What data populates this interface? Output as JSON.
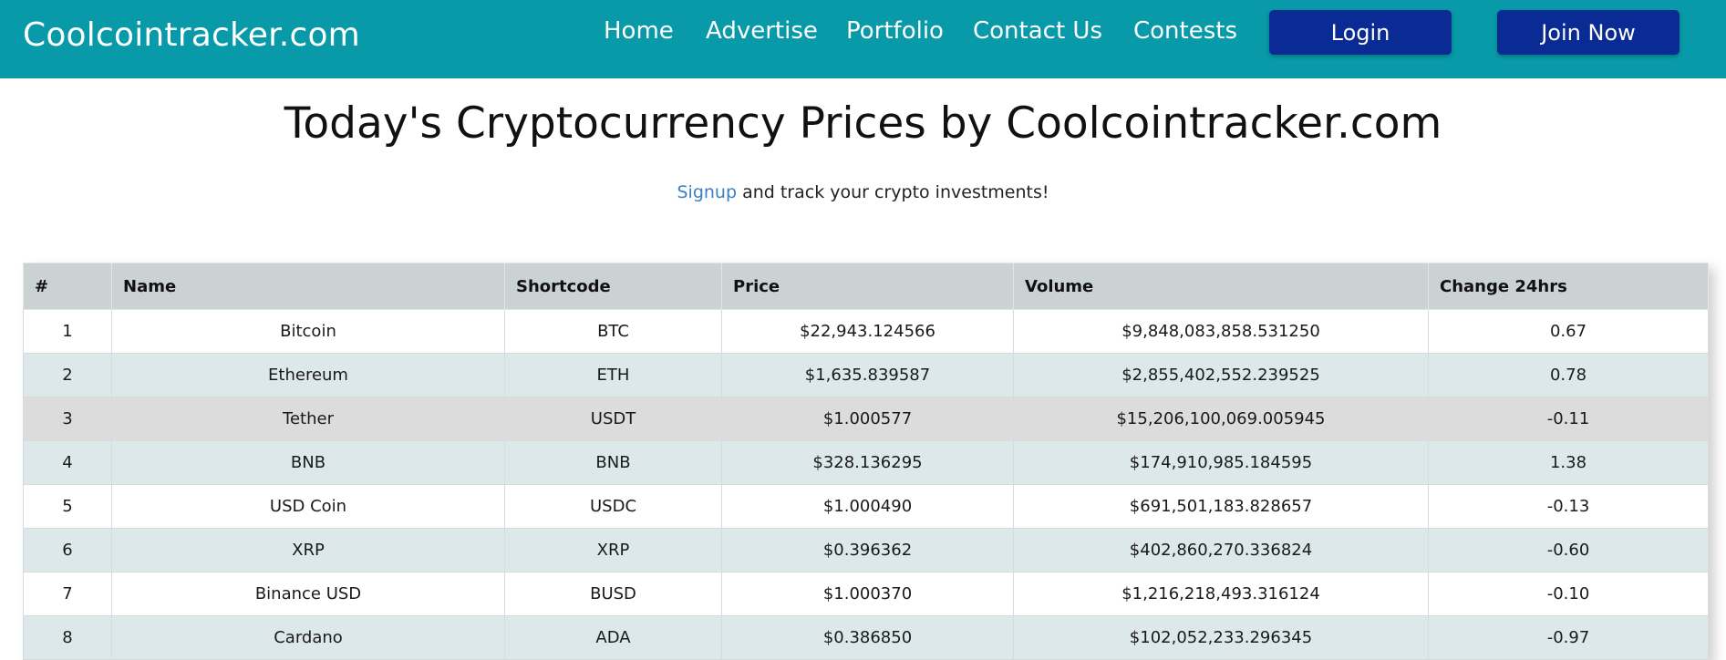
{
  "nav": {
    "brand": "Coolcointracker.com",
    "links": [
      "Home",
      "Advertise",
      "Portfolio",
      "Contact Us",
      "Contests"
    ],
    "login_label": "Login",
    "join_label": "Join Now",
    "colors": {
      "bar": "#089aa8",
      "button": "#0a2a94"
    }
  },
  "page": {
    "title": "Today's Cryptocurrency Prices by Coolcointracker.com",
    "signup_link": "Signup",
    "signup_rest": " and track your crypto investments!"
  },
  "table": {
    "headers": [
      "#",
      "Name",
      "Shortcode",
      "Price",
      "Volume",
      "Change 24hrs"
    ],
    "rows": [
      [
        "1",
        "Bitcoin",
        "BTC",
        "$22,943.124566",
        "$9,848,083,858.531250",
        "0.67"
      ],
      [
        "2",
        "Ethereum",
        "ETH",
        "$1,635.839587",
        "$2,855,402,552.239525",
        "0.78"
      ],
      [
        "3",
        "Tether",
        "USDT",
        "$1.000577",
        "$15,206,100,069.005945",
        "-0.11"
      ],
      [
        "4",
        "BNB",
        "BNB",
        "$328.136295",
        "$174,910,985.184595",
        "1.38"
      ],
      [
        "5",
        "USD Coin",
        "USDC",
        "$1.000490",
        "$691,501,183.828657",
        "-0.13"
      ],
      [
        "6",
        "XRP",
        "XRP",
        "$0.396362",
        "$402,860,270.336824",
        "-0.60"
      ],
      [
        "7",
        "Binance USD",
        "BUSD",
        "$1.000370",
        "$1,216,218,493.316124",
        "-0.10"
      ],
      [
        "8",
        "Cardano",
        "ADA",
        "$0.386850",
        "$102,052,233.296345",
        "-0.97"
      ]
    ]
  }
}
